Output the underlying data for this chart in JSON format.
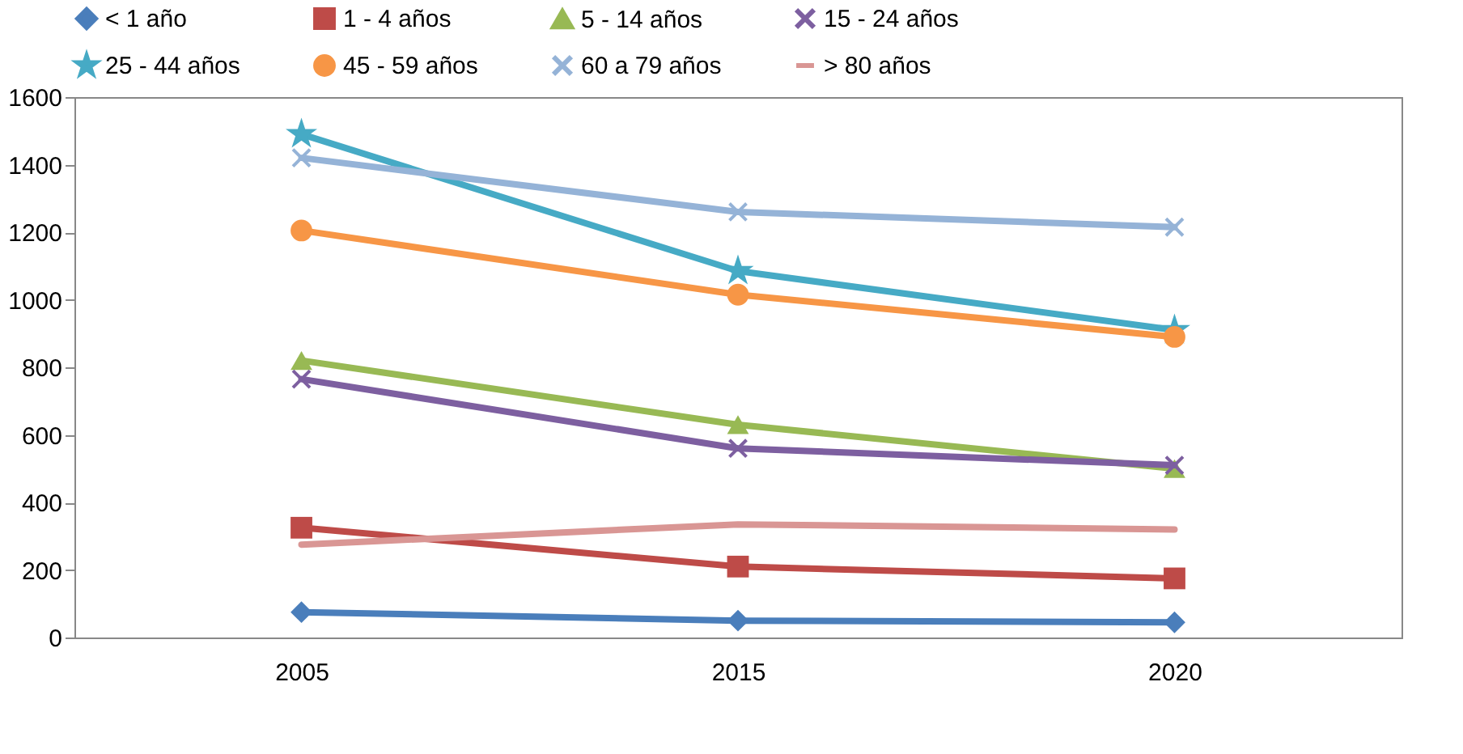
{
  "chart_data": {
    "type": "line",
    "categories": [
      "2005",
      "2015",
      "2020"
    ],
    "ylim": [
      0,
      1600
    ],
    "yticks": [
      0,
      200,
      400,
      600,
      800,
      1000,
      1200,
      1400,
      1600
    ],
    "grid": false,
    "legend": "top",
    "series": [
      {
        "name": "< 1 año",
        "color": "#4a7ebb",
        "marker": "diamond",
        "values": [
          75,
          50,
          45
        ]
      },
      {
        "name": "1 -  4 años",
        "color": "#be4b48",
        "marker": "square",
        "values": [
          325,
          210,
          175
        ]
      },
      {
        "name": "5 - 14 años",
        "color": "#98b954",
        "marker": "triangle",
        "values": [
          820,
          630,
          500
        ]
      },
      {
        "name": "15 - 24 años",
        "color": "#7d5fa0",
        "marker": "cross",
        "values": [
          765,
          560,
          510
        ]
      },
      {
        "name": "25 - 44 años",
        "color": "#46aac5",
        "marker": "star",
        "values": [
          1490,
          1085,
          910
        ]
      },
      {
        "name": "45 - 59 años",
        "color": "#f79646",
        "marker": "circle",
        "values": [
          1205,
          1015,
          890
        ]
      },
      {
        "name": "60 a 79 años",
        "color": "#95b3d7",
        "marker": "cross",
        "values": [
          1420,
          1260,
          1215
        ]
      },
      {
        "name": "> 80 años",
        "color": "#d99694",
        "marker": "none",
        "values": [
          275,
          335,
          320
        ]
      }
    ]
  }
}
